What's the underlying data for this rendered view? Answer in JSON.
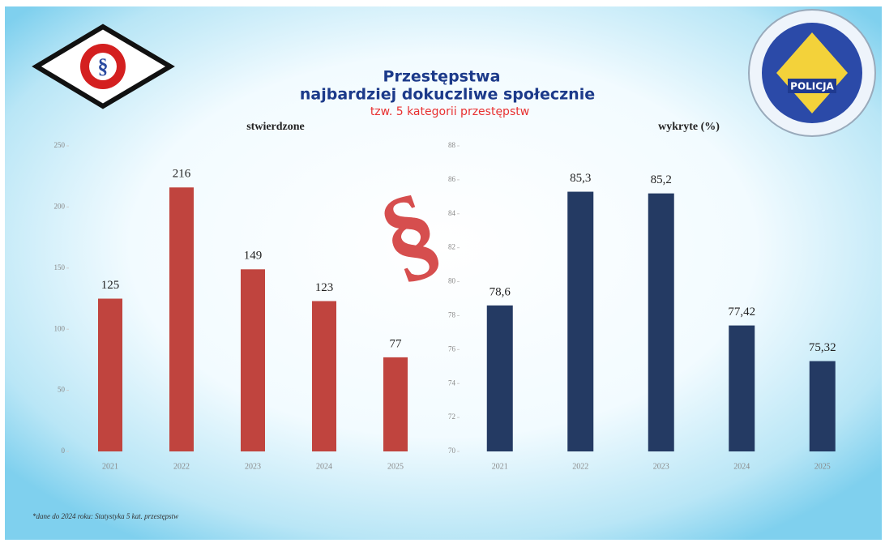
{
  "title_line1": "Przestępstwa",
  "title_line2": "najbardziej dokuczliwe społecznie",
  "subtitle": "tzw. 5 kategorii przestępstw",
  "logo_left": "§",
  "logo_right": "POLICJA",
  "emblem": "§",
  "footnote": "*dane do 2024 roku: Statystyka 5 kat. przestępstw",
  "chart_data": [
    {
      "type": "bar",
      "title": "stwierdzone",
      "categories": [
        "2021",
        "2022",
        "2023",
        "2024",
        "2025"
      ],
      "values": [
        125,
        216,
        149,
        123,
        77
      ],
      "color": "#c0443e",
      "ylim": [
        0,
        250
      ],
      "yticks": [
        0,
        50,
        100,
        150,
        200,
        250
      ]
    },
    {
      "type": "bar",
      "title": "wykryte (%)",
      "categories": [
        "2021",
        "2022",
        "2023",
        "2024",
        "2025"
      ],
      "values": [
        78.6,
        85.3,
        85.2,
        77.42,
        75.32
      ],
      "value_labels": [
        "78,6",
        "85,3",
        "85,2",
        "77,42",
        "75,32"
      ],
      "color": "#243a63",
      "ylim": [
        70,
        88
      ],
      "yticks": [
        70,
        72,
        74,
        76,
        78,
        80,
        82,
        84,
        86,
        88
      ]
    }
  ]
}
